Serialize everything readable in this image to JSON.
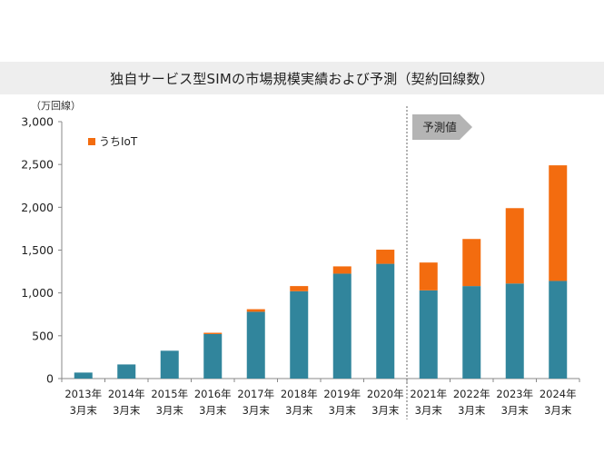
{
  "title": "独自サービス型SIMの市場規模実績および予測（契約回線数）",
  "unit_label": "（万回線）",
  "forecast_label": "予測値",
  "colors": {
    "base": "#31859c",
    "iot": "#f36c0f",
    "forecast_arrow": "#b4b4b4",
    "axis": "#888888"
  },
  "chart_data": {
    "type": "bar",
    "stacked": true,
    "categories": [
      "2013年 3月末",
      "2014年 3月末",
      "2015年 3月末",
      "2016年 3月末",
      "2017年 3月末",
      "2018年 3月末",
      "2019年 3月末",
      "2020年 3月末",
      "2021年 3月末",
      "2022年 3月末",
      "2023年 3月末",
      "2024年 3月末"
    ],
    "category_lines": [
      [
        "2013年",
        "3月末"
      ],
      [
        "2014年",
        "3月末"
      ],
      [
        "2015年",
        "3月末"
      ],
      [
        "2016年",
        "3月末"
      ],
      [
        "2017年",
        "3月末"
      ],
      [
        "2018年",
        "3月末"
      ],
      [
        "2019年",
        "3月末"
      ],
      [
        "2020年",
        "3月末"
      ],
      [
        "2021年",
        "3月末"
      ],
      [
        "2022年",
        "3月末"
      ],
      [
        "2023年",
        "3月末"
      ],
      [
        "2024年",
        "3月末"
      ]
    ],
    "series": [
      {
        "name": "",
        "color": "#31859c",
        "values": [
          70,
          165,
          325,
          520,
          780,
          1020,
          1225,
          1340,
          1030,
          1080,
          1110,
          1140
        ]
      },
      {
        "name": "うちIoT",
        "color": "#f36c0f",
        "values": [
          0,
          0,
          0,
          15,
          30,
          60,
          85,
          165,
          325,
          550,
          880,
          1350
        ]
      }
    ],
    "ylim": [
      0,
      3000
    ],
    "yticks": [
      0,
      500,
      1000,
      1500,
      2000,
      2500,
      3000
    ],
    "ytick_labels": [
      "0",
      "500",
      "1,000",
      "1,500",
      "2,000",
      "2,500",
      "3,000"
    ],
    "forecast_start_index": 8,
    "legend_position": "top-left",
    "grid": false
  }
}
